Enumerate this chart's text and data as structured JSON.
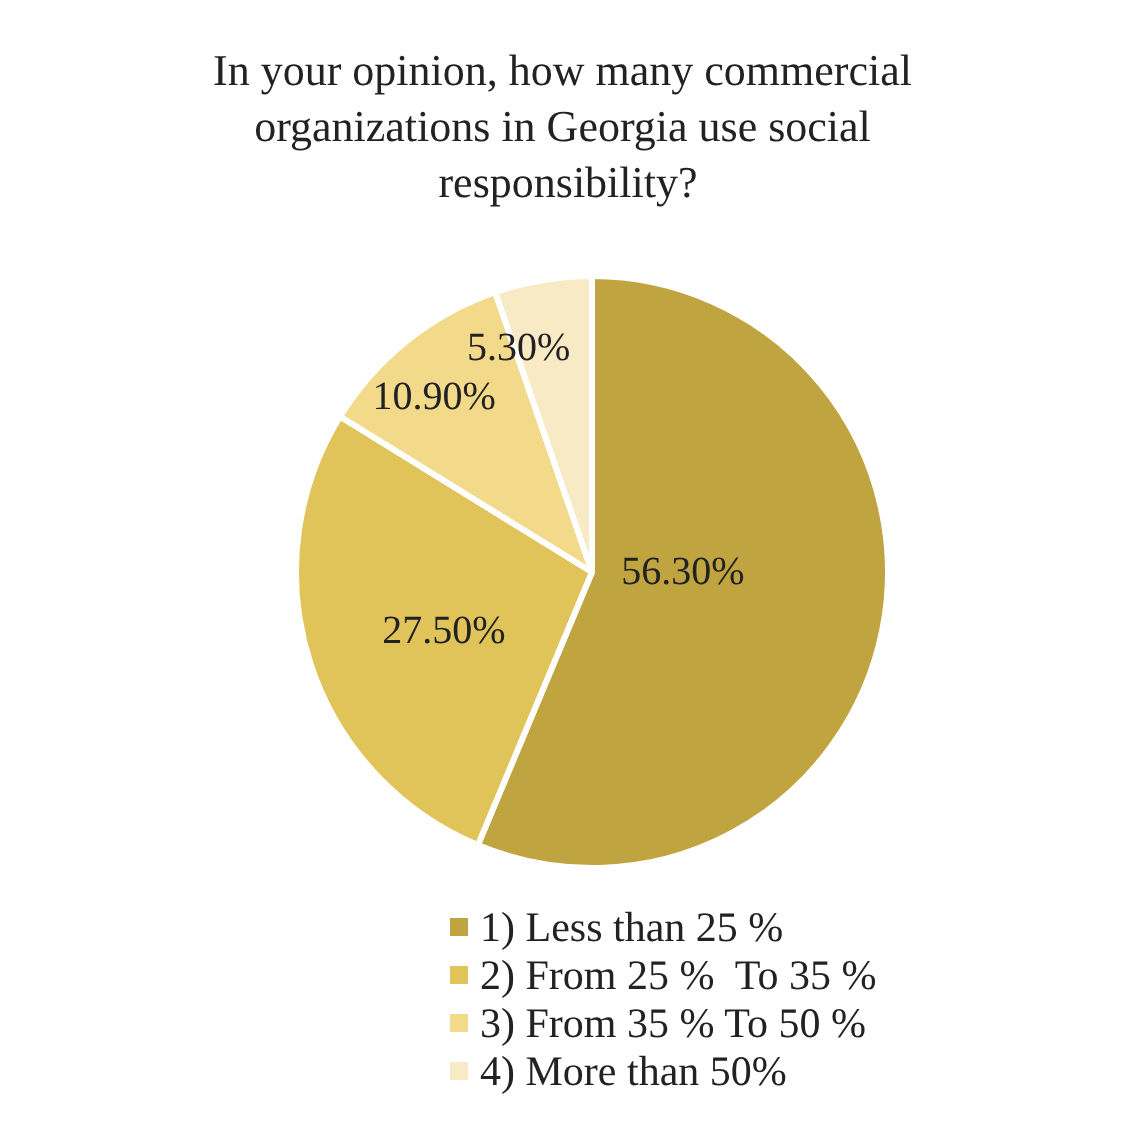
{
  "chart_data": {
    "type": "pie",
    "title": "In your opinion, how many commercial organizations in Georgia use social responsibility?",
    "categories": [
      "1) Less than 25 %",
      "2) From 25 %  To 35 %",
      "3) From 35 % To 50 %",
      "4) More than 50%"
    ],
    "values": [
      56.3,
      27.5,
      10.9,
      5.3
    ],
    "value_labels": [
      "56.30%",
      "27.50%",
      "10.90%",
      "5.30%"
    ],
    "colors": [
      "#c0a440",
      "#e0c45a",
      "#f2da8a",
      "#f7eac4"
    ],
    "legend": "bottom"
  }
}
